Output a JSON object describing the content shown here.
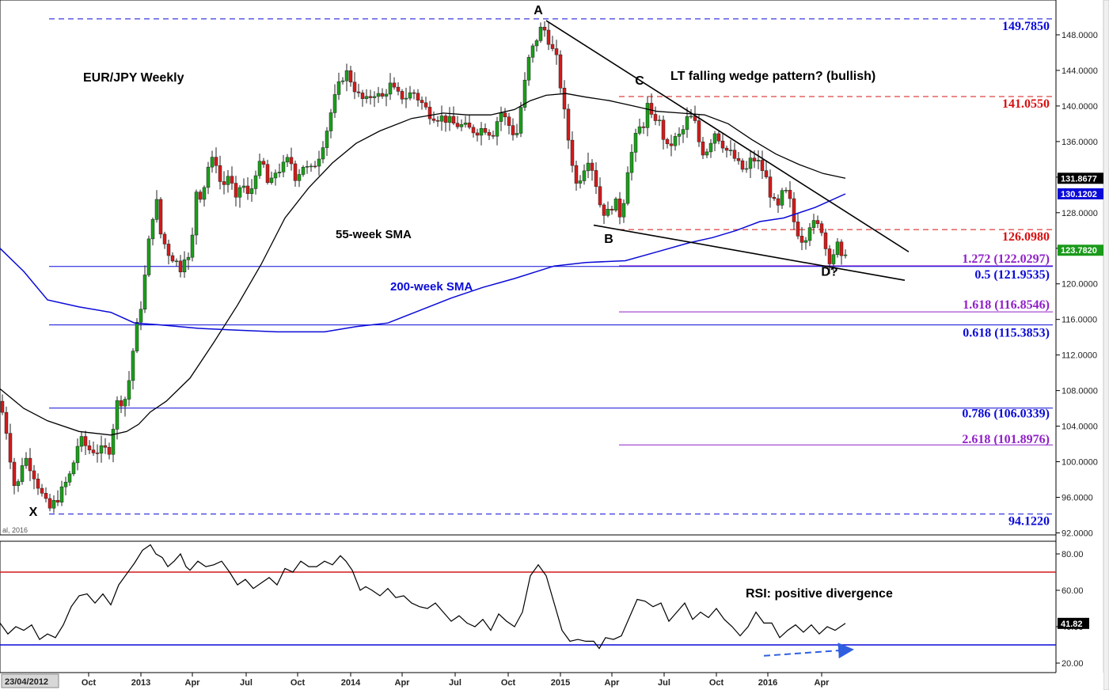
{
  "chart_data": [
    {
      "type": "candlestick",
      "title": "EUR/JPY Weekly",
      "annotation": "LT falling wedge pattern? (bullish)",
      "source_note": "al, 2016",
      "y_ticks": [
        "148.0000",
        "144.0000",
        "140.0000",
        "136.0000",
        "132.0000",
        "128.0000",
        "124.0000",
        "120.0000",
        "116.0000",
        "112.0000",
        "108.0000",
        "104.0000",
        "100.0000",
        "96.0000",
        "92.0000"
      ],
      "x_ticks": [
        "23/04/2012",
        "Oct",
        "2013",
        "Apr",
        "Jul",
        "Oct",
        "2014",
        "Apr",
        "Jul",
        "Oct",
        "2015",
        "Apr",
        "Jul",
        "Oct",
        "2016",
        "Apr"
      ],
      "ylim": [
        92,
        150.5
      ],
      "current_price": "123.7820",
      "price_path": [
        [
          0,
          106.8
        ],
        [
          8,
          103.5
        ],
        [
          20,
          96.2
        ],
        [
          30,
          100.8
        ],
        [
          40,
          99.2
        ],
        [
          55,
          95.8
        ],
        [
          62,
          94.6
        ],
        [
          75,
          96.2
        ],
        [
          90,
          98.8
        ],
        [
          100,
          102.6
        ],
        [
          112,
          101.4
        ],
        [
          125,
          101.2
        ],
        [
          138,
          101.4
        ],
        [
          148,
          106.6
        ],
        [
          160,
          107.2
        ],
        [
          170,
          113.8
        ],
        [
          180,
          118.5
        ],
        [
          190,
          126.2
        ],
        [
          197,
          129.8
        ],
        [
          203,
          125.6
        ],
        [
          212,
          123.6
        ],
        [
          220,
          122.8
        ],
        [
          228,
          121.8
        ],
        [
          236,
          124.2
        ],
        [
          240,
          121.2
        ],
        [
          247,
          130.6
        ],
        [
          255,
          129.8
        ],
        [
          263,
          133.2
        ],
        [
          272,
          134.2
        ],
        [
          280,
          130.6
        ],
        [
          290,
          132.6
        ],
        [
          297,
          128.8
        ],
        [
          305,
          131.6
        ],
        [
          315,
          129.4
        ],
        [
          322,
          132.6
        ],
        [
          332,
          133.6
        ],
        [
          340,
          130.6
        ],
        [
          348,
          132.6
        ],
        [
          358,
          133.2
        ],
        [
          366,
          134.2
        ],
        [
          374,
          131.8
        ],
        [
          382,
          133.4
        ],
        [
          392,
          132.6
        ],
        [
          402,
          134.2
        ],
        [
          412,
          137.0
        ],
        [
          420,
          140.0
        ],
        [
          428,
          142.2
        ],
        [
          436,
          144.0
        ],
        [
          444,
          142.8
        ],
        [
          452,
          141.2
        ],
        [
          462,
          140.4
        ],
        [
          472,
          141.6
        ],
        [
          482,
          140.8
        ],
        [
          492,
          142.4
        ],
        [
          502,
          141.2
        ],
        [
          512,
          141.0
        ],
        [
          522,
          141.6
        ],
        [
          532,
          140.4
        ],
        [
          542,
          139.2
        ],
        [
          552,
          138.8
        ],
        [
          562,
          138.6
        ],
        [
          572,
          138.0
        ],
        [
          582,
          137.8
        ],
        [
          592,
          137.4
        ],
        [
          602,
          137.2
        ],
        [
          612,
          137.6
        ],
        [
          622,
          136.8
        ],
        [
          632,
          139.4
        ],
        [
          642,
          138.0
        ],
        [
          652,
          136.4
        ],
        [
          660,
          141.0
        ],
        [
          668,
          145.2
        ],
        [
          676,
          147.2
        ],
        [
          684,
          148.8
        ],
        [
          690,
          148.4
        ],
        [
          696,
          146.6
        ],
        [
          703,
          145.2
        ],
        [
          710,
          141.2
        ],
        [
          715,
          137.8
        ],
        [
          722,
          134.2
        ],
        [
          728,
          131.2
        ],
        [
          736,
          132.6
        ],
        [
          742,
          134.4
        ],
        [
          750,
          132.6
        ],
        [
          758,
          129.0
        ],
        [
          766,
          127.6
        ],
        [
          776,
          129.4
        ],
        [
          785,
          127.4
        ],
        [
          793,
          133.0
        ],
        [
          800,
          135.4
        ],
        [
          806,
          137.4
        ],
        [
          812,
          137.6
        ],
        [
          818,
          140.0
        ],
        [
          824,
          138.2
        ],
        [
          830,
          139.0
        ],
        [
          837,
          136.8
        ],
        [
          843,
          135.2
        ],
        [
          852,
          136.2
        ],
        [
          861,
          136.8
        ],
        [
          870,
          139.0
        ],
        [
          878,
          138.0
        ],
        [
          886,
          134.8
        ],
        [
          894,
          135.2
        ],
        [
          902,
          137.2
        ],
        [
          910,
          136.2
        ],
        [
          918,
          135.0
        ],
        [
          926,
          134.4
        ],
        [
          934,
          133.2
        ],
        [
          942,
          132.6
        ],
        [
          950,
          134.2
        ],
        [
          958,
          133.6
        ],
        [
          966,
          132.4
        ],
        [
          975,
          129.6
        ],
        [
          982,
          128.2
        ],
        [
          990,
          130.6
        ],
        [
          997,
          129.6
        ],
        [
          1003,
          127.0
        ],
        [
          1010,
          125.4
        ],
        [
          1016,
          124.8
        ],
        [
          1022,
          126.8
        ],
        [
          1030,
          126.6
        ],
        [
          1038,
          126.2
        ],
        [
          1045,
          123.2
        ],
        [
          1050,
          122.6
        ],
        [
          1057,
          124.6
        ],
        [
          1063,
          122.6
        ],
        [
          1068,
          123.78
        ]
      ],
      "sma_55": {
        "name": "55-week SMA",
        "points": [
          [
            0,
            108.2
          ],
          [
            30,
            106.0
          ],
          [
            60,
            104.6
          ],
          [
            100,
            103.4
          ],
          [
            140,
            103.0
          ],
          [
            160,
            103.4
          ],
          [
            175,
            104.2
          ],
          [
            190,
            105.6
          ],
          [
            210,
            106.8
          ],
          [
            240,
            109.4
          ],
          [
            270,
            113.4
          ],
          [
            300,
            117.6
          ],
          [
            330,
            122.2
          ],
          [
            360,
            127.4
          ],
          [
            390,
            130.8
          ],
          [
            420,
            133.6
          ],
          [
            450,
            135.8
          ],
          [
            480,
            137.2
          ],
          [
            520,
            138.6
          ],
          [
            560,
            139.2
          ],
          [
            590,
            139.0
          ],
          [
            620,
            139.0
          ],
          [
            650,
            139.6
          ],
          [
            670,
            140.6
          ],
          [
            690,
            141.2
          ],
          [
            715,
            141.4
          ],
          [
            740,
            141.0
          ],
          [
            770,
            140.6
          ],
          [
            800,
            140.0
          ],
          [
            830,
            139.4
          ],
          [
            860,
            139.2
          ],
          [
            890,
            139.0
          ],
          [
            920,
            138.0
          ],
          [
            950,
            136.2
          ],
          [
            980,
            134.6
          ],
          [
            1010,
            133.4
          ],
          [
            1040,
            132.4
          ],
          [
            1068,
            131.87
          ]
        ],
        "label_value": "131.8677"
      },
      "sma_200": {
        "name": "200-week SMA",
        "points": [
          [
            0,
            124.0
          ],
          [
            30,
            121.4
          ],
          [
            60,
            118.2
          ],
          [
            100,
            117.4
          ],
          [
            140,
            116.8
          ],
          [
            170,
            115.6
          ],
          [
            200,
            115.4
          ],
          [
            250,
            115.0
          ],
          [
            300,
            114.8
          ],
          [
            350,
            114.6
          ],
          [
            410,
            114.6
          ],
          [
            450,
            115.2
          ],
          [
            490,
            115.6
          ],
          [
            530,
            117.0
          ],
          [
            570,
            118.4
          ],
          [
            610,
            119.6
          ],
          [
            650,
            120.6
          ],
          [
            700,
            122.0
          ],
          [
            740,
            122.4
          ],
          [
            790,
            122.6
          ],
          [
            830,
            123.6
          ],
          [
            870,
            124.6
          ],
          [
            900,
            125.2
          ],
          [
            930,
            126.0
          ],
          [
            960,
            127.0
          ],
          [
            990,
            127.4
          ],
          [
            1030,
            128.6
          ],
          [
            1068,
            130.12
          ]
        ],
        "label_value": "130.1202"
      },
      "levels": [
        {
          "label": "149.7850",
          "value": 149.785,
          "style": "dashed",
          "color": "#0a0ad8",
          "x1": 62,
          "x2": 1330
        },
        {
          "label": "141.0550",
          "value": 141.055,
          "style": "dashed",
          "color": "#d81010",
          "x1": 782,
          "x2": 1330
        },
        {
          "label": "126.0980",
          "value": 126.098,
          "style": "dashed",
          "color": "#d81010",
          "x1": 782,
          "x2": 1330
        },
        {
          "label": "1.272 (122.0297)",
          "value": 122.0297,
          "style": "solid",
          "color": "#9020c8",
          "x1": 782,
          "x2": 1330
        },
        {
          "label": "0.5 (121.9535)",
          "value": 121.9535,
          "style": "solid",
          "color": "#0a0ad8",
          "x1": 62,
          "x2": 1330
        },
        {
          "label": "1.618 (116.8546)",
          "value": 116.8546,
          "style": "solid",
          "color": "#9020c8",
          "x1": 782,
          "x2": 1330
        },
        {
          "label": "0.618 (115.3853)",
          "value": 115.3853,
          "style": "solid",
          "color": "#0a0ad8",
          "x1": 62,
          "x2": 1330
        },
        {
          "label": "0.786 (106.0339)",
          "value": 106.0339,
          "style": "solid",
          "color": "#0a0ad8",
          "x1": 62,
          "x2": 1330
        },
        {
          "label": "2.618 (101.8976)",
          "value": 101.8976,
          "style": "solid",
          "color": "#9020c8",
          "x1": 782,
          "x2": 1330
        },
        {
          "label": "94.1220",
          "value": 94.122,
          "style": "dashed",
          "color": "#0a0ad8",
          "x1": 62,
          "x2": 1330
        }
      ],
      "trendlines": [
        {
          "name": "wedge-upper-line",
          "from": [
            690,
            149.6
          ],
          "to": [
            1148,
            123.6
          ]
        },
        {
          "name": "wedge-lower-line",
          "from": [
            750,
            126.6
          ],
          "to": [
            1143,
            120.4
          ]
        }
      ],
      "points": [
        {
          "label": "A",
          "x": 680,
          "y": 150.3
        },
        {
          "label": "B",
          "x": 769,
          "y": 124.6
        },
        {
          "label": "C",
          "x": 808,
          "y": 142.4
        },
        {
          "label": "D?",
          "x": 1048,
          "y": 120.9
        },
        {
          "label": "X",
          "x": 42,
          "y": 93.9
        }
      ]
    },
    {
      "type": "line",
      "name": "RSI",
      "annotation": "RSI: positive divergence",
      "ylim": [
        17,
        87
      ],
      "y_ticks": [
        "80.00",
        "60.00",
        "40.00",
        "20.00"
      ],
      "current_value": "41.82",
      "overbought": 70,
      "oversold": 30,
      "x": [
        0,
        10,
        20,
        30,
        40,
        50,
        60,
        70,
        80,
        90,
        100,
        110,
        120,
        130,
        140,
        150,
        160,
        170,
        180,
        190,
        197,
        205,
        212,
        220,
        228,
        235,
        240,
        250,
        260,
        270,
        280,
        290,
        300,
        310,
        320,
        330,
        340,
        350,
        360,
        370,
        380,
        390,
        400,
        410,
        420,
        430,
        437,
        445,
        455,
        462,
        470,
        480,
        490,
        500,
        510,
        520,
        530,
        540,
        550,
        560,
        570,
        580,
        590,
        600,
        610,
        620,
        630,
        640,
        650,
        660,
        670,
        680,
        690,
        700,
        710,
        720,
        730,
        740,
        750,
        757,
        765,
        775,
        785,
        795,
        805,
        815,
        825,
        835,
        845,
        855,
        865,
        875,
        885,
        895,
        905,
        915,
        925,
        935,
        945,
        955,
        965,
        975,
        985,
        995,
        1005,
        1015,
        1025,
        1035,
        1045,
        1055,
        1068
      ],
      "values": [
        42,
        36,
        40,
        38,
        41,
        33,
        36,
        34,
        41,
        51,
        57,
        58,
        53,
        58,
        52,
        63,
        69,
        75,
        82,
        85,
        80,
        78,
        73,
        76,
        80,
        73,
        71,
        76,
        73,
        74,
        76,
        70,
        63,
        66,
        61,
        64,
        67,
        63,
        72,
        70,
        76,
        73,
        73,
        76,
        74,
        79,
        76,
        71,
        60,
        62,
        60,
        57,
        61,
        56,
        57,
        53,
        51,
        50,
        53,
        48,
        43,
        46,
        42,
        40,
        44,
        38,
        47,
        43,
        40,
        48,
        68,
        74,
        68,
        53,
        38,
        32,
        33,
        32,
        32,
        28,
        34,
        33,
        35,
        45,
        55,
        54,
        51,
        53,
        43,
        48,
        53,
        44,
        48,
        45,
        50,
        44,
        40,
        35,
        40,
        48,
        42,
        42,
        34,
        38,
        41,
        37,
        41,
        36,
        40,
        38,
        41.82
      ],
      "divergence_arrow": {
        "from": [
          965,
          24
        ],
        "to": [
          1075,
          27.4
        ]
      }
    }
  ]
}
